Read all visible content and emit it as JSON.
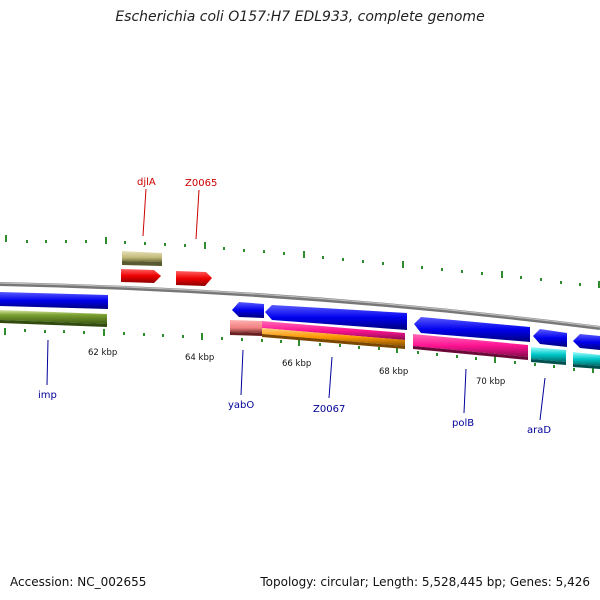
{
  "header": {
    "title": "Escherichia coli O157:H7 EDL933, complete genome"
  },
  "footer": {
    "accession": "Accession: NC_002655",
    "summary": "Topology: circular; Length: 5,528,445 bp; Genes: 5,426"
  },
  "scale_labels": [
    "62 kbp",
    "64 kbp",
    "66 kbp",
    "68 kbp",
    "70 kbp"
  ],
  "genes_top": [
    {
      "name": "djlA",
      "color": "#cc0000"
    },
    {
      "name": "Z0065",
      "color": "#cc0000"
    }
  ],
  "genes_bottom": [
    {
      "name": "imp",
      "color": "#000099"
    },
    {
      "name": "yabO",
      "color": "#000099"
    },
    {
      "name": "Z0067",
      "color": "#000099"
    },
    {
      "name": "polB",
      "color": "#000099"
    },
    {
      "name": "araD",
      "color": "#000099"
    }
  ],
  "colors": {
    "backbone": "#888888",
    "tick": "#2e8b2e",
    "blue_feature": "#0000ee",
    "olive_feature": "#6b8e23",
    "red_feature": "#ee0000",
    "khaki_feature": "#c8c088",
    "salmon_feature": "#f08080",
    "magenta_feature": "#ff1493",
    "orange_feature": "#ff9900",
    "cyan_feature": "#00c8c8"
  }
}
